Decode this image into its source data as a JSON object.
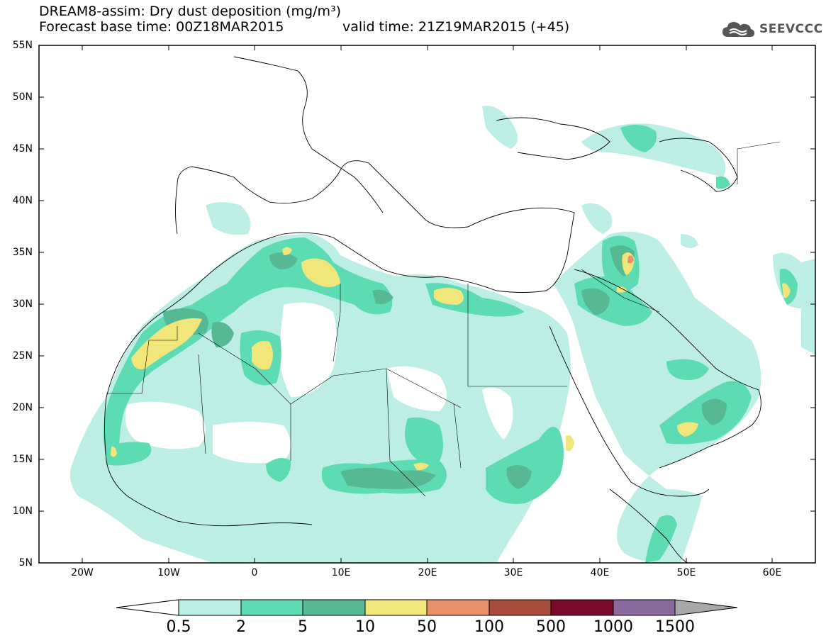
{
  "header": {
    "line1": "DREAM8-assim: Dry dust deposition (mg/m³)",
    "line2a": "Forecast base time: 00Z18MAR2015",
    "line2b": "valid time: 21Z19MAR2015 (+45)",
    "logo_text": "SEEVCCC",
    "logo_icon": "cloud-icon"
  },
  "map": {
    "projection": "lat-lon",
    "lon_range": [
      -25,
      65
    ],
    "lat_range": [
      5,
      55
    ],
    "lat_ticks": [
      "55N",
      "50N",
      "45N",
      "40N",
      "35N",
      "30N",
      "25N",
      "20N",
      "15N",
      "10N",
      "5N"
    ],
    "lon_ticks": [
      "20W",
      "10W",
      "0",
      "10E",
      "20E",
      "30E",
      "40E",
      "50E",
      "60E"
    ]
  },
  "colorbar": {
    "labels": [
      "0.5",
      "2",
      "5",
      "10",
      "50",
      "100",
      "500",
      "1000",
      "1500"
    ],
    "colors": [
      "#ffffff",
      "#bdeee6",
      "#5ddcb4",
      "#57b894",
      "#f0e67a",
      "#e8906a",
      "#a84a3c",
      "#7a0a2c",
      "#8a6a9c",
      "#a8a8a8"
    ]
  }
}
